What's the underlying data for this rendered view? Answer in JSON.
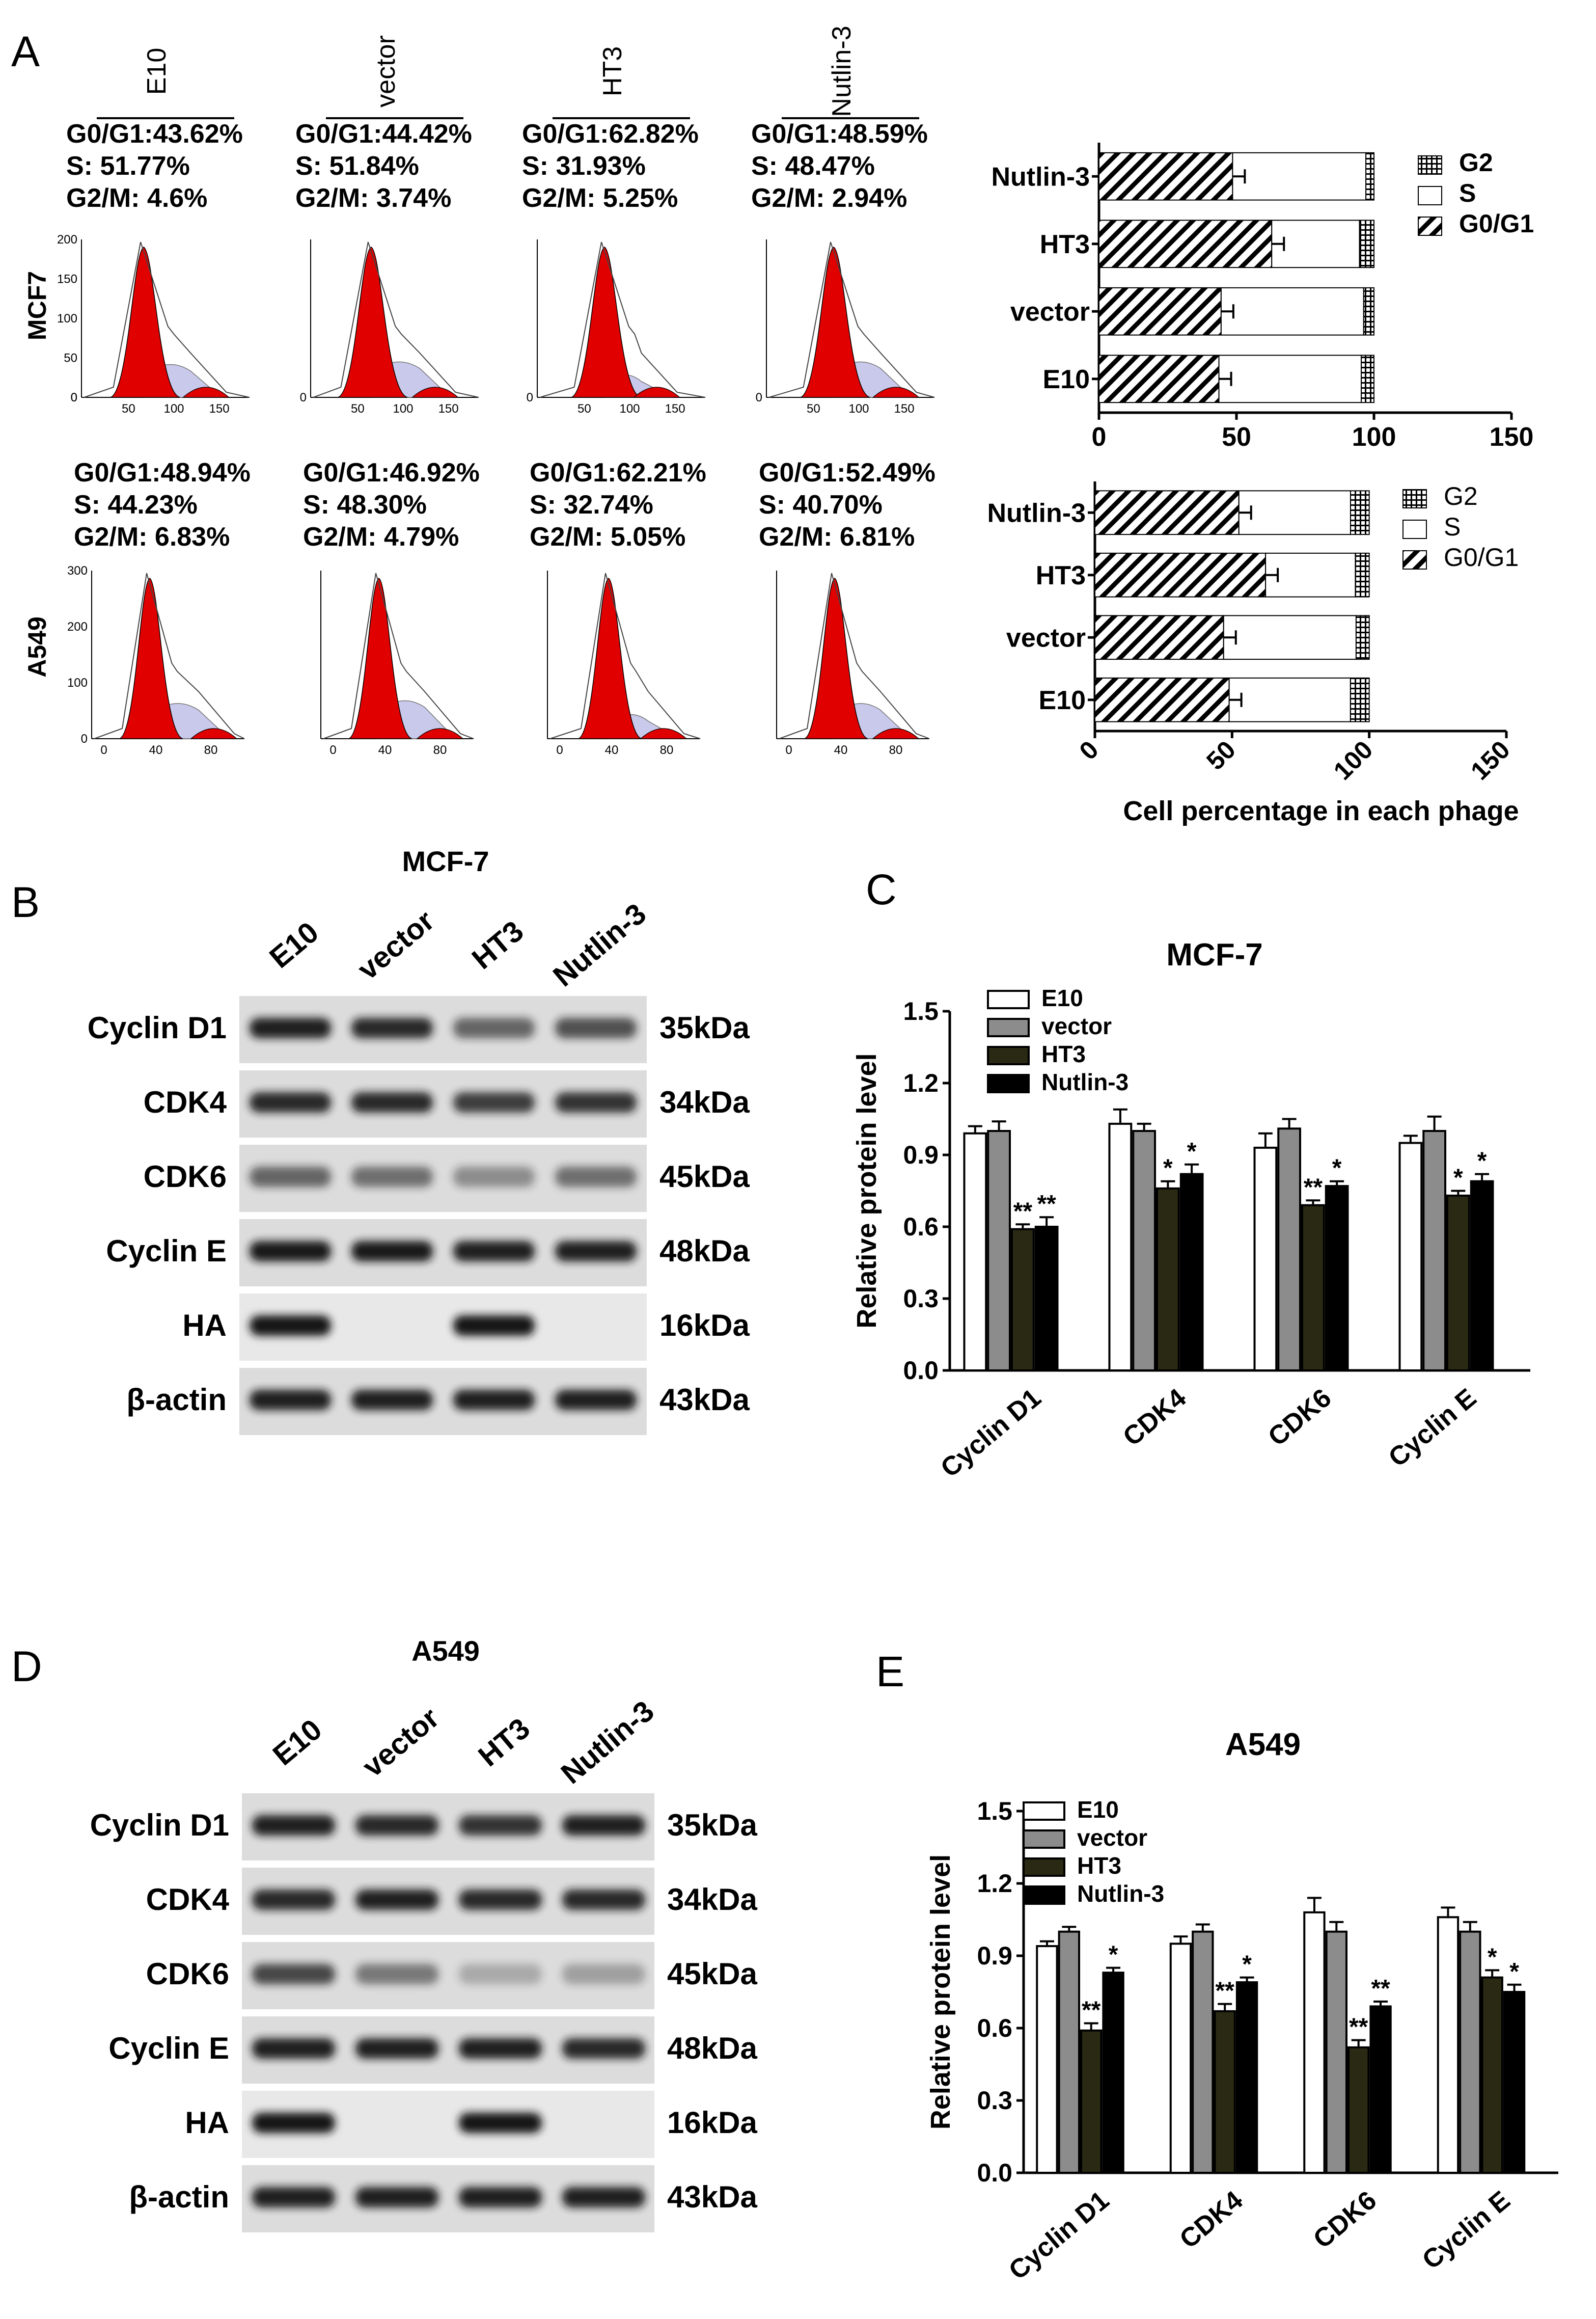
{
  "panels": {
    "a": "A",
    "b": "B",
    "c": "C",
    "d": "D",
    "e": "E"
  },
  "panel_a": {
    "conditions": [
      "E10",
      "vector",
      "HT3",
      "Nutlin-3"
    ],
    "mcf7_row_label": "MCF7",
    "a549_row_label": "A549",
    "mcf7_stats": [
      [
        "G0/G1:43.62%",
        "S: 51.77%",
        "G2/M: 4.6%"
      ],
      [
        "G0/G1:44.42%",
        "S: 51.84%",
        "G2/M: 3.74%"
      ],
      [
        "G0/G1:62.82%",
        "S: 31.93%",
        "G2/M: 5.25%"
      ],
      [
        "G0/G1:48.59%",
        "S: 48.47%",
        "G2/M: 2.94%"
      ]
    ],
    "a549_stats": [
      [
        "G0/G1:48.94%",
        "S: 44.23%",
        "G2/M: 6.83%"
      ],
      [
        "G0/G1:46.92%",
        "S: 48.30%",
        "G2/M: 4.79%"
      ],
      [
        "G0/G1:62.21%",
        "S: 32.74%",
        "G2/M: 5.05%"
      ],
      [
        "G0/G1:52.49%",
        "S: 40.70%",
        "G2/M: 6.81%"
      ]
    ],
    "mcf7_hist_yticks": [
      "200",
      "150",
      "100",
      "50",
      "0"
    ],
    "mcf7_hist_xticks": [
      "50",
      "100",
      "150"
    ],
    "a549_hist_yticks": [
      "300",
      "200",
      "100",
      "0"
    ],
    "a549_hist_xticks": [
      "0",
      "40",
      "80"
    ]
  },
  "blot_b": {
    "title": "MCF-7",
    "lanes": [
      "E10",
      "vector",
      "HT3",
      "Nutlin-3"
    ],
    "rows": [
      {
        "label": "Cyclin  D1",
        "size": "35kDa"
      },
      {
        "label": "CDK4",
        "size": "34kDa"
      },
      {
        "label": "CDK6",
        "size": "45kDa"
      },
      {
        "label": "Cyclin  E",
        "size": "48kDa"
      },
      {
        "label": "HA",
        "size": "16kDa"
      },
      {
        "label": "β-actin",
        "size": "43kDa"
      }
    ]
  },
  "blot_d": {
    "title": "A549",
    "lanes": [
      "E10",
      "vector",
      "HT3",
      "Nutlin-3"
    ],
    "rows": [
      {
        "label": "Cyclin  D1",
        "size": "35kDa"
      },
      {
        "label": "CDK4",
        "size": "34kDa"
      },
      {
        "label": "CDK6",
        "size": "45kDa"
      },
      {
        "label": "Cyclin  E",
        "size": "48kDa"
      },
      {
        "label": "HA",
        "size": "16kDa"
      },
      {
        "label": "β-actin",
        "size": "43kDa"
      }
    ]
  },
  "colors": {
    "hist_fill": "#e00000",
    "hist_s_phase": "#c9c9ec",
    "e10_bar": "#ffffff",
    "vector_bar": "#8c8c8c",
    "ht3_bar": "#2a2a14",
    "nutlin_bar": "#000000",
    "blot_band": "#141414"
  },
  "chart_data": [
    {
      "id": "A-top",
      "type": "bar",
      "orientation": "horizontal",
      "stacked": true,
      "categories": [
        "Nutlin-3",
        "HT3",
        "vector",
        "E10"
      ],
      "series": [
        {
          "name": "G0/G1",
          "values": [
            48.59,
            62.82,
            44.42,
            43.62
          ],
          "pattern": "hatched"
        },
        {
          "name": "S",
          "values": [
            48.47,
            31.93,
            51.84,
            51.77
          ],
          "pattern": "white"
        },
        {
          "name": "G2",
          "values": [
            2.94,
            5.25,
            3.74,
            4.6
          ],
          "pattern": "grid"
        }
      ],
      "xlim": [
        0,
        150
      ],
      "xticks": [
        "0",
        "50",
        "100",
        "150"
      ],
      "legend_labels": [
        "G2",
        "S",
        "G0/G1"
      ],
      "legend_position": "top-right"
    },
    {
      "id": "A-bottom",
      "type": "bar",
      "orientation": "horizontal",
      "stacked": true,
      "categories": [
        "Nutlin-3",
        "HT3",
        "vector",
        "E10"
      ],
      "series": [
        {
          "name": "G0/G1",
          "values": [
            52.49,
            62.21,
            46.92,
            48.94
          ],
          "pattern": "hatched"
        },
        {
          "name": "S",
          "values": [
            40.7,
            32.74,
            48.3,
            44.23
          ],
          "pattern": "white"
        },
        {
          "name": "G2",
          "values": [
            6.81,
            5.05,
            4.79,
            6.83
          ],
          "pattern": "grid"
        }
      ],
      "xlim": [
        0,
        150
      ],
      "xticks": [
        "0",
        "50",
        "100",
        "150"
      ],
      "xlabel": "Cell percentage in each phage",
      "legend_labels": [
        "G2",
        "S",
        "G0/G1"
      ],
      "legend_position": "top-right"
    },
    {
      "id": "C",
      "type": "bar",
      "title": "MCF-7",
      "ylabel": "Relative protein level",
      "categories": [
        "Cyclin D1",
        "CDK4",
        "CDK6",
        "Cyclin E"
      ],
      "series": [
        {
          "name": "E10",
          "values": [
            0.99,
            1.03,
            0.93,
            0.95
          ]
        },
        {
          "name": "vector",
          "values": [
            1.0,
            1.0,
            1.01,
            1.0
          ]
        },
        {
          "name": "HT3",
          "values": [
            0.59,
            0.76,
            0.69,
            0.73
          ]
        },
        {
          "name": "Nutlin-3",
          "values": [
            0.6,
            0.82,
            0.77,
            0.79
          ]
        }
      ],
      "errors": [
        [
          0.03,
          0.06,
          0.06,
          0.03
        ],
        [
          0.04,
          0.03,
          0.04,
          0.06
        ],
        [
          0.02,
          0.03,
          0.02,
          0.02
        ],
        [
          0.04,
          0.04,
          0.02,
          0.03
        ]
      ],
      "significance": [
        [
          "",
          "",
          "",
          ""
        ],
        [
          "",
          "",
          "",
          ""
        ],
        [
          "**",
          "*",
          "**",
          "*"
        ],
        [
          "**",
          "*",
          "*",
          "*"
        ]
      ],
      "ylim": [
        0,
        1.5
      ],
      "yticks": [
        "0.0",
        "0.3",
        "0.6",
        "0.9",
        "1.2",
        "1.5"
      ],
      "legend_position": "top-left"
    },
    {
      "id": "E",
      "type": "bar",
      "title": "A549",
      "ylabel": "Relative protein level",
      "categories": [
        "Cyclin D1",
        "CDK4",
        "CDK6",
        "Cyclin E"
      ],
      "series": [
        {
          "name": "E10",
          "values": [
            0.94,
            0.95,
            1.08,
            1.06
          ]
        },
        {
          "name": "vector",
          "values": [
            1.0,
            1.0,
            1.0,
            1.0
          ]
        },
        {
          "name": "HT3",
          "values": [
            0.59,
            0.67,
            0.52,
            0.81
          ]
        },
        {
          "name": "Nutlin-3",
          "values": [
            0.83,
            0.79,
            0.69,
            0.75
          ]
        }
      ],
      "errors": [
        [
          0.02,
          0.03,
          0.06,
          0.04
        ],
        [
          0.02,
          0.03,
          0.04,
          0.04
        ],
        [
          0.03,
          0.03,
          0.03,
          0.03
        ],
        [
          0.02,
          0.02,
          0.02,
          0.03
        ]
      ],
      "significance": [
        [
          "",
          "",
          "",
          ""
        ],
        [
          "",
          "",
          "",
          ""
        ],
        [
          "**",
          "**",
          "**",
          "*"
        ],
        [
          "*",
          "*",
          "**",
          "*"
        ]
      ],
      "ylim": [
        0,
        1.5
      ],
      "yticks": [
        "0.0",
        "0.3",
        "0.6",
        "0.9",
        "1.2",
        "1.5"
      ],
      "legend_position": "top-left"
    }
  ]
}
